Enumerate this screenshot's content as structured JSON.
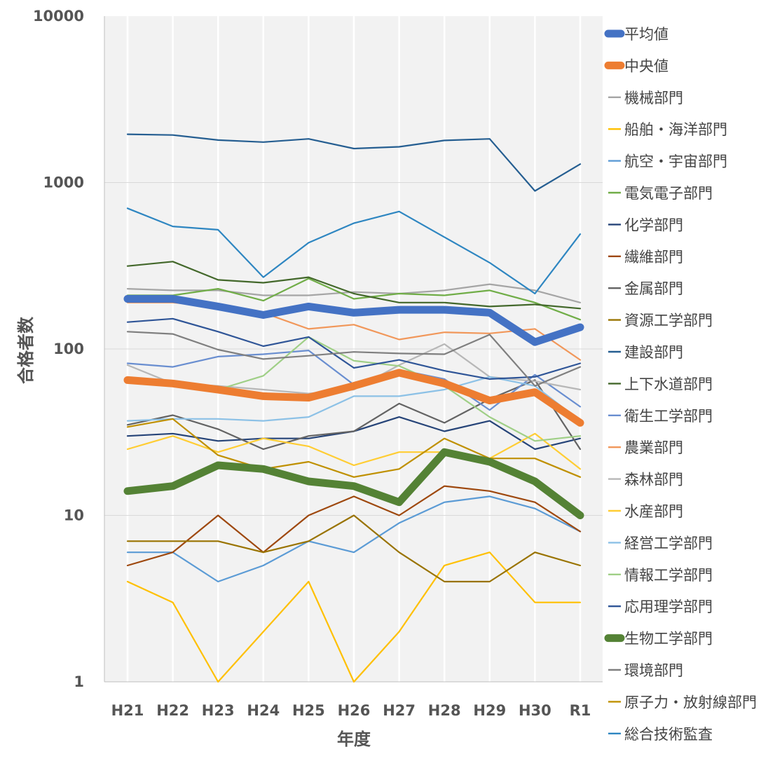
{
  "chart_data": {
    "type": "line",
    "title": "",
    "xlabel": "年度",
    "ylabel": "合格者数",
    "y_scale": "log",
    "ylim": [
      1,
      10000
    ],
    "yticks": [
      "1",
      "10",
      "100",
      "1000",
      "10000"
    ],
    "categories": [
      "H21",
      "H22",
      "H23",
      "H24",
      "H25",
      "H26",
      "H27",
      "H28",
      "H29",
      "H30",
      "R1"
    ],
    "grid": "horizontal major lines (gray) and vertical lines (white)",
    "background": "#f2f2f2",
    "legend_position": "right",
    "series": [
      {
        "name": "平均値",
        "color": "#4472c4",
        "width": "thick",
        "values": [
          200,
          200,
          180,
          160,
          180,
          165,
          172,
          172,
          165,
          110,
          135
        ]
      },
      {
        "name": "中央値",
        "color": "#ed7d31",
        "width": "thick",
        "values": [
          65,
          62,
          57,
          52,
          51,
          60,
          72,
          62,
          49,
          55,
          36
        ]
      },
      {
        "name": "機械部門",
        "color": "#a5a5a5",
        "width": "thin",
        "values": [
          230,
          225,
          225,
          210,
          210,
          220,
          215,
          225,
          245,
          225,
          190
        ]
      },
      {
        "name": "船舶・海洋部門",
        "color": "#ffc000",
        "width": "thin",
        "values": [
          4,
          3,
          1,
          2,
          4,
          1,
          2,
          5,
          6,
          3,
          3
        ]
      },
      {
        "name": "航空・宇宙部門",
        "color": "#5b9bd5",
        "width": "thin",
        "values": [
          6,
          6,
          4,
          5,
          7,
          6,
          9,
          12,
          13,
          11,
          8
        ]
      },
      {
        "name": "電気電子部門",
        "color": "#70ad47",
        "width": "thin",
        "values": [
          210,
          210,
          230,
          195,
          265,
          200,
          215,
          210,
          225,
          190,
          150
        ]
      },
      {
        "name": "化学部門",
        "color": "#264478",
        "width": "thin",
        "values": [
          30,
          31,
          28,
          29,
          29,
          32,
          39,
          32,
          37,
          25,
          29
        ]
      },
      {
        "name": "繊維部門",
        "color": "#9e480e",
        "width": "thin",
        "values": [
          5,
          6,
          10,
          6,
          10,
          13,
          10,
          15,
          14,
          12,
          8
        ]
      },
      {
        "name": "金属部門",
        "color": "#636363",
        "width": "thin",
        "values": [
          35,
          40,
          33,
          25,
          30,
          32,
          47,
          36,
          50,
          65,
          25
        ]
      },
      {
        "name": "資源工学部門",
        "color": "#997300",
        "width": "thin",
        "values": [
          7,
          7,
          7,
          6,
          7,
          10,
          6,
          4,
          4,
          6,
          5
        ]
      },
      {
        "name": "建設部門",
        "color": "#255e91",
        "width": "thin",
        "values": [
          1950,
          1930,
          1800,
          1750,
          1830,
          1600,
          1640,
          1790,
          1830,
          890,
          1290
        ]
      },
      {
        "name": "上下水道部門",
        "color": "#43682b",
        "width": "thin",
        "values": [
          315,
          335,
          260,
          250,
          270,
          215,
          190,
          190,
          180,
          185,
          175
        ]
      },
      {
        "name": "衛生工学部門",
        "color": "#698ed0",
        "width": "thin",
        "values": [
          82,
          78,
          90,
          93,
          98,
          61,
          75,
          66,
          43,
          70,
          45
        ]
      },
      {
        "name": "農業部門",
        "color": "#f1975a",
        "width": "thin",
        "values": [
          190,
          190,
          180,
          165,
          132,
          140,
          114,
          126,
          124,
          132,
          86
        ]
      },
      {
        "name": "森林部門",
        "color": "#b7b7b7",
        "width": "thin",
        "values": [
          80,
          62,
          60,
          57,
          54,
          57,
          80,
          107,
          68,
          64,
          57
        ]
      },
      {
        "name": "水産部門",
        "color": "#ffcd33",
        "width": "thin",
        "values": [
          25,
          30,
          24,
          29,
          26,
          20,
          24,
          24,
          22,
          31,
          19
        ]
      },
      {
        "name": "経営工学部門",
        "color": "#8cc1e6",
        "width": "thin",
        "values": [
          37,
          38,
          38,
          37,
          39,
          52,
          52,
          57,
          68,
          60,
          37
        ]
      },
      {
        "name": "情報工学部門",
        "color": "#9fcf86",
        "width": "thin",
        "values": [
          65,
          63,
          57,
          69,
          118,
          85,
          79,
          60,
          39,
          28,
          30
        ]
      },
      {
        "name": "応用理学部門",
        "color": "#2f5597",
        "width": "thin",
        "values": [
          145,
          152,
          127,
          104,
          118,
          77,
          86,
          74,
          66,
          68,
          82
        ]
      },
      {
        "name": "生物工学部門",
        "color": "#548235",
        "width": "thick",
        "values": [
          14,
          15,
          20,
          19,
          16,
          15,
          12,
          24,
          21,
          16,
          10
        ]
      },
      {
        "name": "環境部門",
        "color": "#7f7f7f",
        "width": "thin",
        "values": [
          127,
          123,
          99,
          87,
          91,
          96,
          94,
          93,
          122,
          60,
          78
        ]
      },
      {
        "name": "原子力・放射線部門",
        "color": "#bf9000",
        "width": "thin",
        "values": [
          34,
          38,
          23,
          19,
          21,
          17,
          19,
          29,
          22,
          22,
          17
        ]
      },
      {
        "name": "総合技術監査",
        "color": "#2e86c1",
        "width": "thin",
        "values": [
          700,
          545,
          520,
          270,
          435,
          570,
          670,
          470,
          330,
          215,
          490
        ]
      }
    ]
  }
}
